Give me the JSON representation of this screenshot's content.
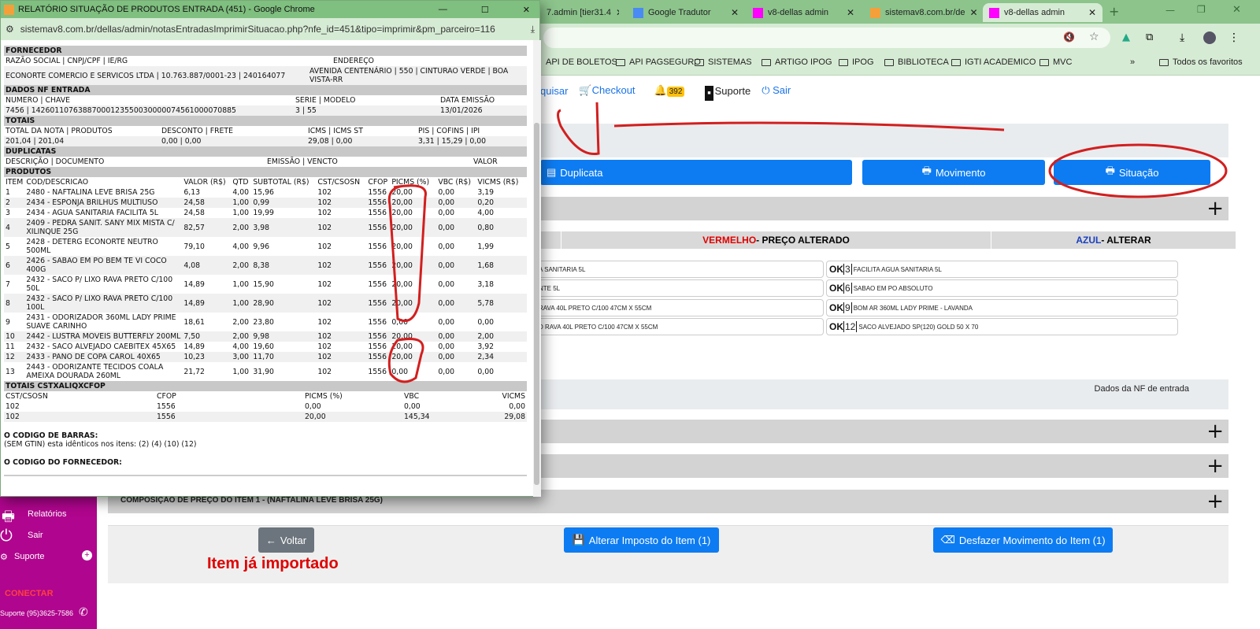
{
  "browser": {
    "tabs": [
      {
        "label": "7.admin [tier31.4"
      },
      {
        "label": "Google Tradutor"
      },
      {
        "label": "v8-dellas admin"
      },
      {
        "label": "sistemav8.com.br/de"
      },
      {
        "label": "v8-dellas admin",
        "active": true
      }
    ],
    "bookmarks": [
      "API DE BOLETOS",
      "API PAGSEGURO",
      "SISTEMAS",
      "ARTIGO IPOG",
      "IPOG",
      "BIBLIOTECA",
      "IGTI ACADEMICO",
      "MVC"
    ],
    "bookmarks_more": "»",
    "all_bookmarks": "Todos os favoritos"
  },
  "nav": {
    "search": "quisar",
    "checkout": "Checkout",
    "notifications": "392",
    "support": "Suporte",
    "logout": "Sair"
  },
  "actions": {
    "duplicata": "Duplicata",
    "movimento": "Movimento",
    "situacao": "Situação"
  },
  "legend": {
    "red_word": "VERMELHO",
    "red_text": " - PREÇO ALTERADO",
    "blue_word": "AZUL",
    "blue_text": " - ALTERAR",
    "colors": {
      "red": "#e00000",
      "blue": "#1a3fbf"
    }
  },
  "items_left": [
    "A SANITARIA 5L",
    "NTE 5L",
    "RAVA 40L PRETO C/100 47CM X 55CM",
    "D RAVA 40L PRETO C/100 47CM X 55CM"
  ],
  "items_right": [
    {
      "status": "OK",
      "num": "3",
      "desc": "FACILITA AGUA SANITARIA 5L"
    },
    {
      "status": "OK",
      "num": "6",
      "desc": "SABAO EM PO ABSOLUTO"
    },
    {
      "status": "OK",
      "num": "9",
      "desc": "BOM AR 360ML LADY PRIME - LAVANDA"
    },
    {
      "status": "OK",
      "num": "12",
      "desc": "SACO ALVEJADO SP(120) GOLD 50 X 70"
    }
  ],
  "nf_label": "Dados da NF de entrada",
  "composition": "COMPOSIÇÃO DE PREÇO DO ITEM 1 - (NAFTALINA LEVE BRISA 25G)",
  "footer": {
    "back": "Voltar",
    "alter_tax": "Alterar Imposto do Item (1)",
    "undo": "Desfazer Movimento do Item (1)",
    "imported": "Item já importado"
  },
  "sidebar": {
    "reports": "Relatórios",
    "logout": "Sair",
    "support": "Suporte",
    "connect": "CONECTAR",
    "phone": "Suporte (95)3625-7586"
  },
  "popup": {
    "title": "RELATÓRIO SITUAÇÃO DE PRODUTOS ENTRADA (451) - Google Chrome",
    "url": "sistemav8.com.br/dellas/admin/notasEntradasImprimirSituacao.php?nfe_id=451&tipo=imprimir&pm_parceiro=116",
    "fornecedor": {
      "title": "FORNECEDOR",
      "h1": "RAZÃO SOCIAL | CNPJ/CPF | IE/RG",
      "h2": "ENDEREÇO",
      "v1": "ECONORTE COMERCIO E SERVICOS LTDA | 10.763.887/0001-23 | 240164077",
      "v2": "AVENIDA CENTENÁRIO | 550 | CINTURAO VERDE | BOA VISTA-RR"
    },
    "nf": {
      "title": "DADOS NF ENTRADA",
      "h1": "NUMERO | CHAVE",
      "h2": "SERIE | MODELO",
      "h3": "DATA EMISSÃO",
      "v1": "7456 | 14260110763887000123550030000074561000070885",
      "v2": "3 | 55",
      "v3": "13/01/2026"
    },
    "totais": {
      "title": "TOTAIS",
      "h1": "TOTAL DA NOTA | PRODUTOS",
      "h2": "DESCONTO | FRETE",
      "h3": "ICMS | ICMS ST",
      "h4": "PIS | COFINS | IPI",
      "v1": "201,04 | 201,04",
      "v2": "0,00 | 0,00",
      "v3": "29,08 | 0,00",
      "v4": "3,31 | 15,29 | 0,00"
    },
    "duplicatas": {
      "title": "DUPLICATAS",
      "h1": "DESCRIÇÃO | DOCUMENTO",
      "h2": "EMISSÃO | VENCTO",
      "h3": "VALOR"
    },
    "produtos": {
      "title": "PRODUTOS",
      "columns": [
        "ITEM",
        "COD/DESCRICAO",
        "VALOR (R$)",
        "QTD",
        "SUBTOTAL (R$)",
        "CST/CSOSN",
        "CFOP",
        "PICMS (%)",
        "VBC (R$)",
        "VICMS (R$)"
      ],
      "rows": [
        [
          "1",
          "2480 - NAFTALINA LEVE BRISA 25G",
          "6,13",
          "4,00",
          "15,96",
          "102",
          "1556",
          "20,00",
          "0,00",
          "3,19"
        ],
        [
          "2",
          "2434 - ESPONJA BRILHUS MULTIUSO",
          "24,58",
          "1,00",
          "0,99",
          "102",
          "1556",
          "20,00",
          "0,00",
          "0,20"
        ],
        [
          "3",
          "2434 - AGUA SANITARIA FACILITA 5L",
          "24,58",
          "1,00",
          "19,99",
          "102",
          "1556",
          "20,00",
          "0,00",
          "4,00"
        ],
        [
          "4",
          "2409 - PEDRA SANIT. SANY MIX MISTA C/ XILINQUE 25G",
          "82,57",
          "2,00",
          "3,98",
          "102",
          "1556",
          "20,00",
          "0,00",
          "0,80"
        ],
        [
          "5",
          "2428 - DETERG ECONORTE NEUTRO 500ML",
          "79,10",
          "4,00",
          "9,96",
          "102",
          "1556",
          "20,00",
          "0,00",
          "1,99"
        ],
        [
          "6",
          "2426 - SABAO EM PO BEM TE VI COCO 400G",
          "4,08",
          "2,00",
          "8,38",
          "102",
          "1556",
          "20,00",
          "0,00",
          "1,68"
        ],
        [
          "7",
          "2432 - SACO P/ LIXO RAVA PRETO C/100 50L",
          "14,89",
          "1,00",
          "15,90",
          "102",
          "1556",
          "20,00",
          "0,00",
          "3,18"
        ],
        [
          "8",
          "2432 - SACO P/ LIXO RAVA PRETO C/100 100L",
          "14,89",
          "1,00",
          "28,90",
          "102",
          "1556",
          "20,00",
          "0,00",
          "5,78"
        ],
        [
          "9",
          "2431 - ODORIZADOR 360ML LADY PRIME SUAVE CARINHO",
          "18,61",
          "2,00",
          "23,80",
          "102",
          "1556",
          "0,00",
          "0,00",
          "0,00"
        ],
        [
          "10",
          "2442 - LUSTRA MOVEIS BUTTERFLY 200ML",
          "7,50",
          "2,00",
          "9,98",
          "102",
          "1556",
          "20,00",
          "0,00",
          "2,00"
        ],
        [
          "11",
          "2432 - SACO ALVEJADO CAEBITEX 45X65",
          "14,89",
          "4,00",
          "19,60",
          "102",
          "1556",
          "20,00",
          "0,00",
          "3,92"
        ],
        [
          "12",
          "2433 - PANO DE COPA CAROL 40X65",
          "10,23",
          "3,00",
          "11,70",
          "102",
          "1556",
          "20,00",
          "0,00",
          "2,34"
        ],
        [
          "13",
          "2443 - ODORIZANTE TECIDOS COALA AMEIXA DOURADA 260ML",
          "21,72",
          "1,00",
          "31,90",
          "102",
          "1556",
          "0,00",
          "0,00",
          "0,00"
        ]
      ]
    },
    "totais_cst": {
      "title": "TOTAIS CSTXALIQXCFOP",
      "columns": [
        "CST/CSOSN",
        "CFOP",
        "PICMS (%)",
        "VBC",
        "VICMS"
      ],
      "rows": [
        [
          "102",
          "1556",
          "0,00",
          "0,00",
          "0,00"
        ],
        [
          "102",
          "1556",
          "20,00",
          "145,34",
          "29,08"
        ]
      ]
    },
    "barcode": {
      "title": "O CODIGO DE BARRAS:",
      "text": "(SEM GTIN) esta idênticos nos itens: (2) (4) (10) (12)"
    },
    "supplier_code": {
      "title": "O CODIGO DO FORNECEDOR:"
    }
  }
}
